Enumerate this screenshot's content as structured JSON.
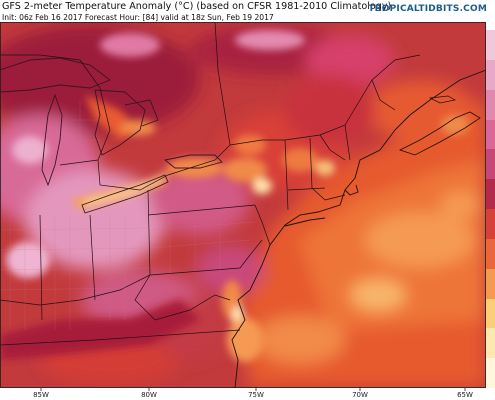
{
  "header": {
    "title": "GFS 2-meter Temperature Anomaly (°C) (based on CFSR 1981-2010 Climatology)",
    "info": "Init: 06z Feb 16 2017   Forecast Hour: [84]   valid at 18z Sun, Feb 19 2017",
    "brand": "TROPICALTIDBITS.COM"
  },
  "longitude_labels": [
    "85W",
    "80W",
    "75W",
    "70W",
    "65W"
  ],
  "colors": {
    "hot_peak": "#fdf0c8",
    "warm_light": "#f5a25a",
    "warm_orange": "#ea5a2c",
    "warm_red": "#d63a3a",
    "dark_red": "#a81c3a",
    "pink": "#d96a96",
    "light_pink": "#ecabcb",
    "lake_outline": "#3a1620",
    "border_color": "#201010",
    "county_color": "#c47a8e"
  },
  "colorbar": [
    "#f0c8dc",
    "#e8a8c8",
    "#e088b0",
    "#d86898",
    "#c64878",
    "#b42a4a",
    "#d6423a",
    "#e8683a",
    "#f59a52",
    "#fbcf7a",
    "#fde8b0",
    "#fff6dc"
  ]
}
